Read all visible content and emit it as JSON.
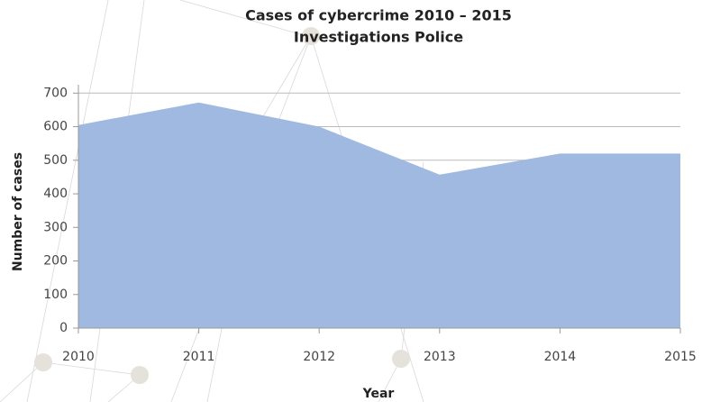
{
  "chart_data": {
    "type": "area",
    "title": "Cases of cybercrime 2010 – 2015",
    "subtitle": "Investigations Police",
    "x_label": "Year",
    "y_label": "Number of cases",
    "x": [
      2010,
      2011,
      2012,
      2013,
      2014,
      2015
    ],
    "values": [
      605,
      672,
      600,
      457,
      520,
      520
    ],
    "color": "#a0b9e0",
    "xlim": [
      2010,
      2015
    ],
    "xticks": [
      2010,
      2011,
      2012,
      2013,
      2014,
      2015
    ],
    "ylim": [
      0,
      725
    ],
    "yticks": [
      0,
      100,
      200,
      300,
      400,
      500,
      600,
      700
    ],
    "grid": true
  }
}
